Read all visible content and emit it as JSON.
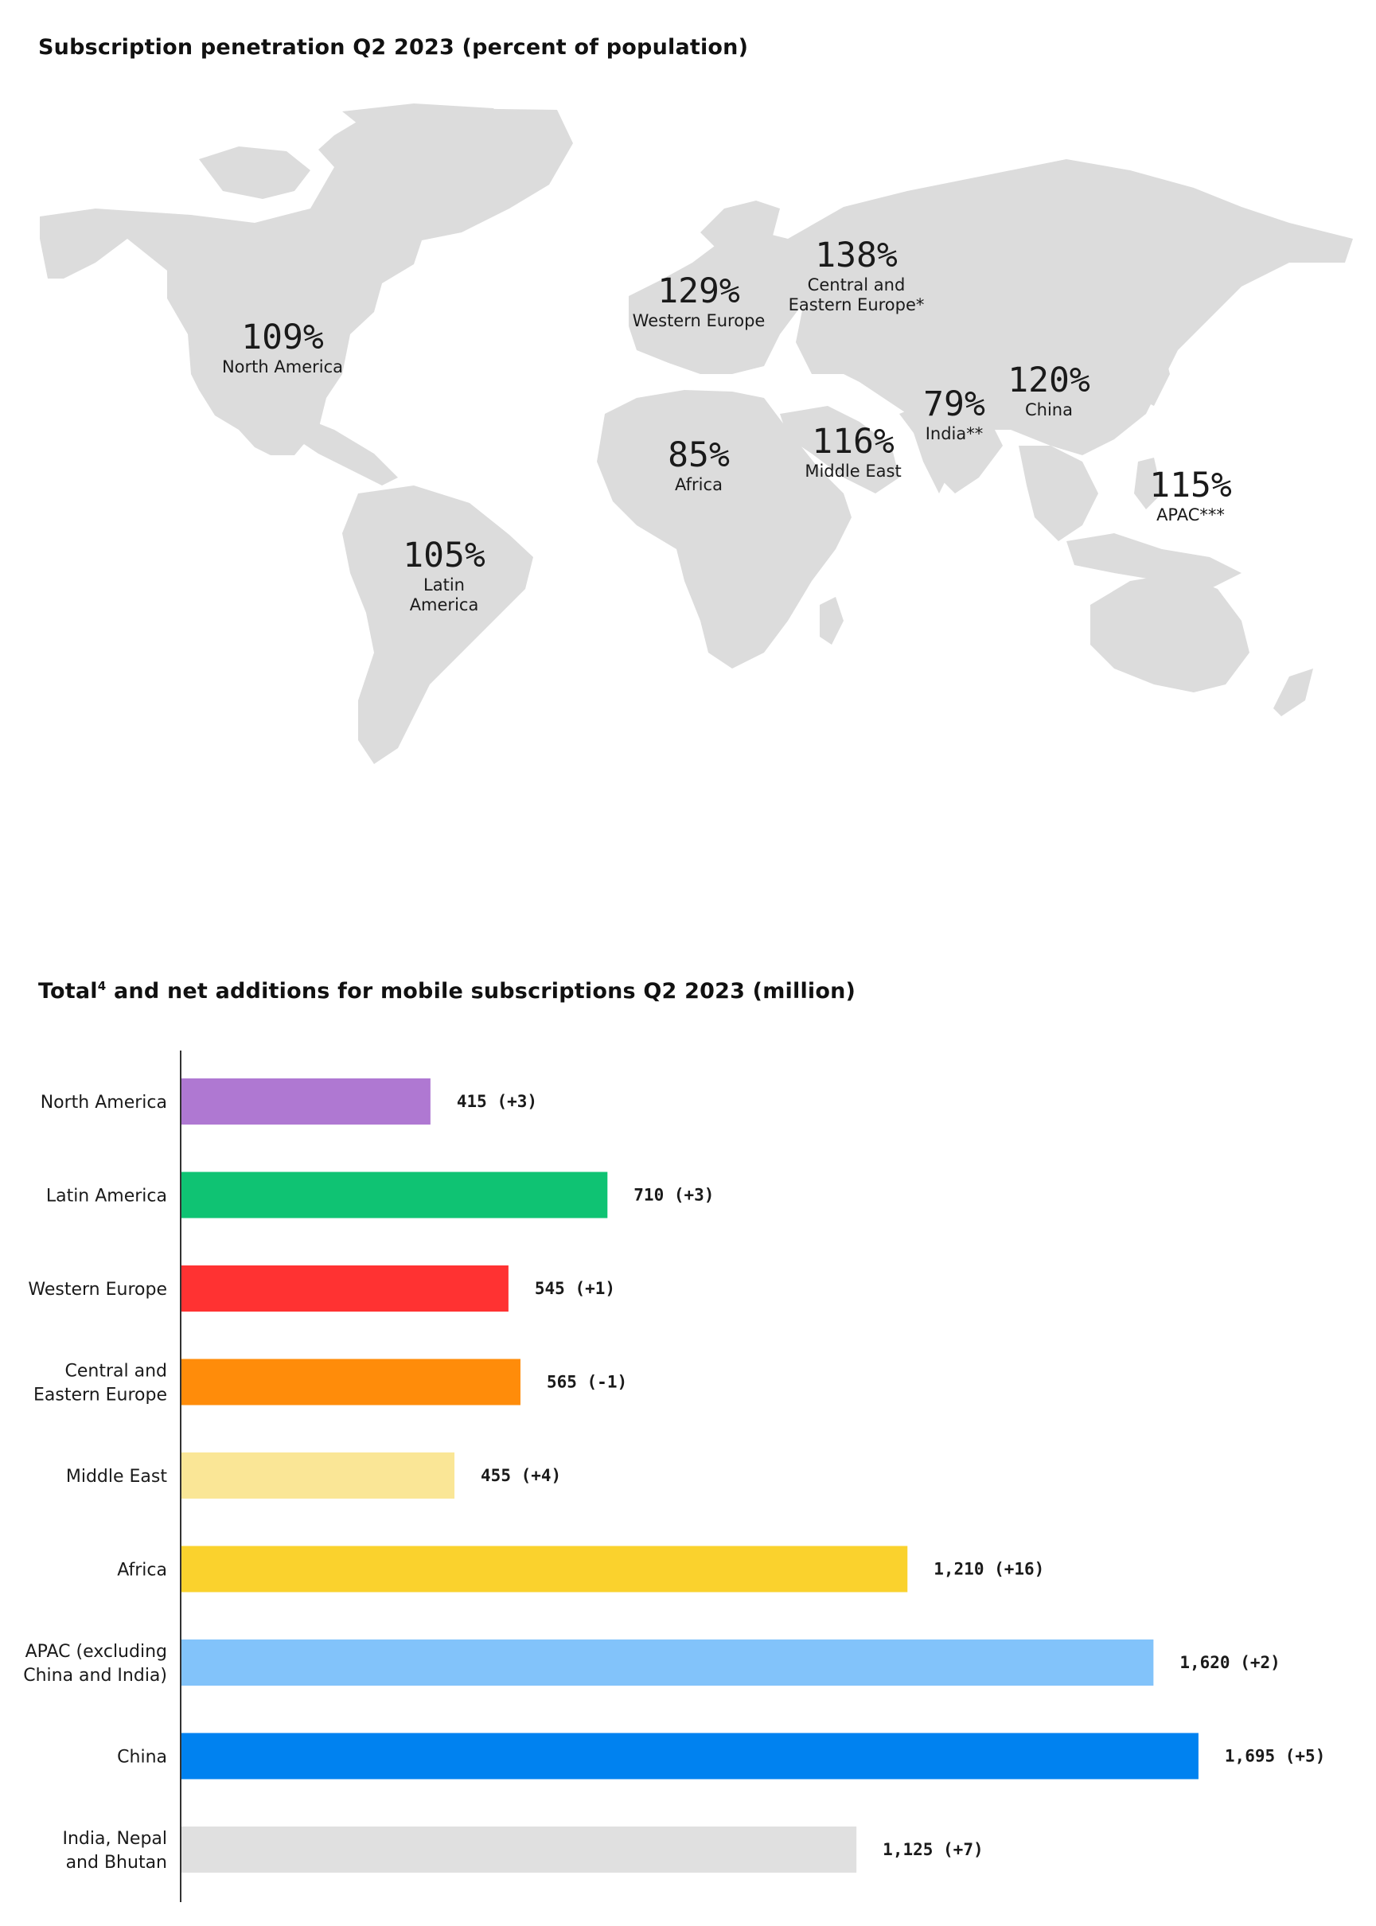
{
  "map": {
    "title": "Subscription penetration Q2 2023 (percent of population)",
    "regions": [
      {
        "key": "north-america",
        "value": "109%",
        "name": [
          "North America"
        ]
      },
      {
        "key": "latin-america",
        "value": "105%",
        "name": [
          "Latin",
          "America"
        ]
      },
      {
        "key": "western-europe",
        "value": "129%",
        "name": [
          "Western Europe"
        ]
      },
      {
        "key": "central-eastern-europe",
        "value": "138%",
        "name": [
          "Central and",
          "Eastern Europe*"
        ]
      },
      {
        "key": "africa",
        "value": "85%",
        "name": [
          "Africa"
        ]
      },
      {
        "key": "middle-east",
        "value": "116%",
        "name": [
          "Middle East"
        ]
      },
      {
        "key": "india",
        "value": "79%",
        "name": [
          "India**"
        ]
      },
      {
        "key": "china",
        "value": "120%",
        "name": [
          "China"
        ]
      },
      {
        "key": "apac",
        "value": "115%",
        "name": [
          "APAC***"
        ]
      }
    ]
  },
  "chart_data": {
    "type": "bar",
    "orientation": "horizontal",
    "title": "Total",
    "title_superscript": "4",
    "title_rest": " and net additions for mobile subscriptions Q2 2023 (million)",
    "categories": [
      [
        "North America"
      ],
      [
        "Latin America"
      ],
      [
        "Western Europe"
      ],
      [
        "Central and",
        "Eastern Europe"
      ],
      [
        "Middle East"
      ],
      [
        "Africa"
      ],
      [
        "APAC (excluding",
        "China and India)"
      ],
      [
        "China"
      ],
      [
        "India, Nepal",
        "and Bhutan"
      ]
    ],
    "values": [
      415,
      710,
      545,
      565,
      455,
      1210,
      1620,
      1695,
      1125
    ],
    "net_additions": [
      3,
      3,
      1,
      -1,
      4,
      16,
      2,
      5,
      7
    ],
    "data_labels": [
      "415 (+3)",
      "710 (+3)",
      "545 (+1)",
      "565 (-1)",
      "455 (+4)",
      "1,210 (+16)",
      "1,620 (+2)",
      "1,695 (+5)",
      "1,125 (+7)"
    ],
    "colors": [
      "#af78d2",
      "#0fc373",
      "#ff3232",
      "#ff8c0a",
      "#fae696",
      "#fad22d",
      "#82c3fa",
      "#0082f0",
      "#e0e0e0"
    ],
    "xlim": [
      0,
      1780
    ],
    "grid": false
  }
}
